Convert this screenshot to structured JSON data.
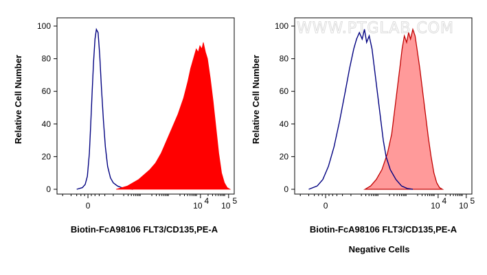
{
  "chart_data": [
    {
      "type": "area",
      "xlabel": "Biotin-FcA98106 FLT3/CD135,PE-A",
      "ylabel": "Relative Cell Number",
      "x_ticks": [
        {
          "label": "0",
          "v": 0
        },
        {
          "label": "10",
          "exp": "4",
          "v": 4
        },
        {
          "label": "10",
          "exp": "5",
          "v": 5
        }
      ],
      "y_ticks": [
        0,
        20,
        40,
        60,
        80,
        100
      ],
      "xlim": [
        -1.1,
        5.2
      ],
      "ylim": [
        0,
        100
      ],
      "series": [
        {
          "style": "line",
          "color": "#000080",
          "points": [
            [
              -0.4,
              0
            ],
            [
              -0.2,
              1
            ],
            [
              -0.1,
              3
            ],
            [
              -0.02,
              8
            ],
            [
              0.05,
              22
            ],
            [
              0.1,
              40
            ],
            [
              0.15,
              60
            ],
            [
              0.2,
              78
            ],
            [
              0.25,
              92
            ],
            [
              0.3,
              98
            ],
            [
              0.36,
              96
            ],
            [
              0.42,
              82
            ],
            [
              0.48,
              62
            ],
            [
              0.55,
              42
            ],
            [
              0.62,
              26
            ],
            [
              0.7,
              14
            ],
            [
              0.8,
              7
            ],
            [
              0.9,
              4
            ],
            [
              1.05,
              2
            ],
            [
              1.2,
              1
            ],
            [
              1.4,
              0.5
            ],
            [
              1.6,
              0
            ]
          ]
        },
        {
          "style": "fill",
          "color": "#ff0000",
          "points": [
            [
              1.0,
              0
            ],
            [
              1.2,
              1
            ],
            [
              1.4,
              2
            ],
            [
              1.6,
              4
            ],
            [
              1.8,
              6
            ],
            [
              2.0,
              9
            ],
            [
              2.2,
              12
            ],
            [
              2.4,
              16
            ],
            [
              2.6,
              22
            ],
            [
              2.8,
              30
            ],
            [
              3.0,
              38
            ],
            [
              3.2,
              46
            ],
            [
              3.4,
              56
            ],
            [
              3.55,
              66
            ],
            [
              3.65,
              74
            ],
            [
              3.75,
              80
            ],
            [
              3.85,
              86
            ],
            [
              3.92,
              84
            ],
            [
              3.98,
              88
            ],
            [
              4.05,
              86
            ],
            [
              4.1,
              90
            ],
            [
              4.18,
              84
            ],
            [
              4.25,
              80
            ],
            [
              4.35,
              68
            ],
            [
              4.45,
              54
            ],
            [
              4.55,
              38
            ],
            [
              4.65,
              22
            ],
            [
              4.75,
              10
            ],
            [
              4.85,
              4
            ],
            [
              4.95,
              1
            ],
            [
              5.05,
              0
            ]
          ]
        }
      ]
    },
    {
      "type": "area",
      "xlabel": "Biotin-FcA98106 FLT3/CD135,PE-A",
      "ylabel": "Relative Cell Number",
      "caption": "Negative Cells",
      "x_ticks": [
        {
          "label": "0",
          "v": 0
        },
        {
          "label": "10",
          "exp": "4",
          "v": 4
        },
        {
          "label": "10",
          "exp": "5",
          "v": 5
        }
      ],
      "y_ticks": [
        0,
        20,
        40,
        60,
        80,
        100
      ],
      "xlim": [
        -1.1,
        5.2
      ],
      "ylim": [
        0,
        100
      ],
      "watermark": "WWW.PTGLAB.COM",
      "series": [
        {
          "style": "fill",
          "color": "#ff9a9a",
          "edge": "#c00000",
          "points": [
            [
              1.4,
              0
            ],
            [
              1.6,
              2
            ],
            [
              1.8,
              6
            ],
            [
              2.0,
              12
            ],
            [
              2.2,
              22
            ],
            [
              2.35,
              34
            ],
            [
              2.45,
              48
            ],
            [
              2.55,
              62
            ],
            [
              2.65,
              76
            ],
            [
              2.72,
              86
            ],
            [
              2.8,
              94
            ],
            [
              2.88,
              90
            ],
            [
              2.95,
              96
            ],
            [
              3.02,
              92
            ],
            [
              3.1,
              98
            ],
            [
              3.18,
              94
            ],
            [
              3.25,
              86
            ],
            [
              3.35,
              74
            ],
            [
              3.45,
              60
            ],
            [
              3.55,
              46
            ],
            [
              3.65,
              32
            ],
            [
              3.75,
              20
            ],
            [
              3.85,
              10
            ],
            [
              3.95,
              4
            ],
            [
              4.05,
              1
            ],
            [
              4.15,
              0
            ]
          ]
        },
        {
          "style": "line",
          "color": "#000080",
          "points": [
            [
              -0.6,
              0
            ],
            [
              -0.3,
              2
            ],
            [
              -0.1,
              6
            ],
            [
              0.1,
              14
            ],
            [
              0.3,
              26
            ],
            [
              0.5,
              42
            ],
            [
              0.7,
              60
            ],
            [
              0.85,
              74
            ],
            [
              1.0,
              86
            ],
            [
              1.1,
              92
            ],
            [
              1.2,
              96
            ],
            [
              1.3,
              92
            ],
            [
              1.38,
              98
            ],
            [
              1.46,
              90
            ],
            [
              1.55,
              94
            ],
            [
              1.65,
              86
            ],
            [
              1.75,
              72
            ],
            [
              1.85,
              58
            ],
            [
              1.95,
              44
            ],
            [
              2.05,
              30
            ],
            [
              2.15,
              20
            ],
            [
              2.3,
              12
            ],
            [
              2.5,
              6
            ],
            [
              2.7,
              2
            ],
            [
              2.9,
              0.5
            ],
            [
              3.1,
              0
            ]
          ]
        }
      ]
    }
  ]
}
